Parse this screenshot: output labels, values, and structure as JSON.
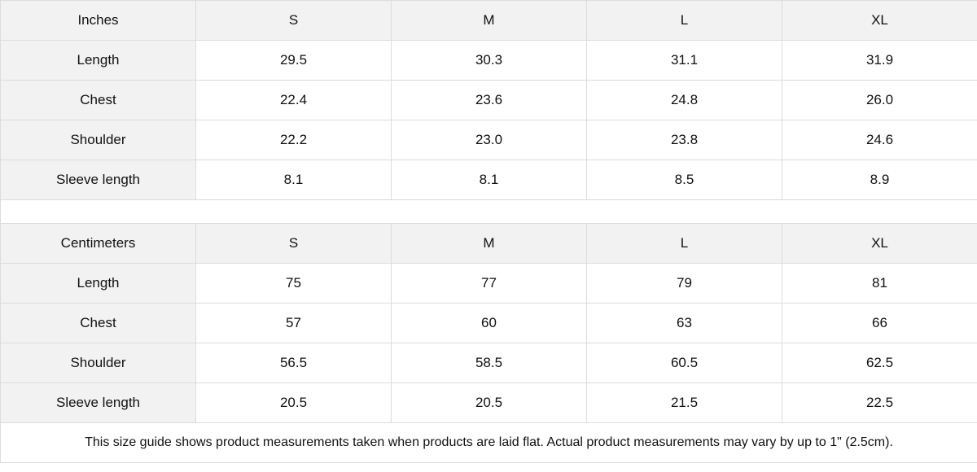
{
  "tables": [
    {
      "unit": "Inches",
      "sizes": [
        "S",
        "M",
        "L",
        "XL"
      ],
      "rows": [
        {
          "label": "Length",
          "values": [
            "29.5",
            "30.3",
            "31.1",
            "31.9"
          ]
        },
        {
          "label": "Chest",
          "values": [
            "22.4",
            "23.6",
            "24.8",
            "26.0"
          ]
        },
        {
          "label": "Shoulder",
          "values": [
            "22.2",
            "23.0",
            "23.8",
            "24.6"
          ]
        },
        {
          "label": "Sleeve length",
          "values": [
            "8.1",
            "8.1",
            "8.5",
            "8.9"
          ]
        }
      ]
    },
    {
      "unit": "Centimeters",
      "sizes": [
        "S",
        "M",
        "L",
        "XL"
      ],
      "rows": [
        {
          "label": "Length",
          "values": [
            "75",
            "77",
            "79",
            "81"
          ]
        },
        {
          "label": "Chest",
          "values": [
            "57",
            "60",
            "63",
            "66"
          ]
        },
        {
          "label": "Shoulder",
          "values": [
            "56.5",
            "58.5",
            "60.5",
            "62.5"
          ]
        },
        {
          "label": "Sleeve length",
          "values": [
            "20.5",
            "20.5",
            "21.5",
            "22.5"
          ]
        }
      ]
    }
  ],
  "note": "This size guide shows product measurements taken when products are laid flat.  Actual product measurements may vary by up to 1\" (2.5cm)."
}
